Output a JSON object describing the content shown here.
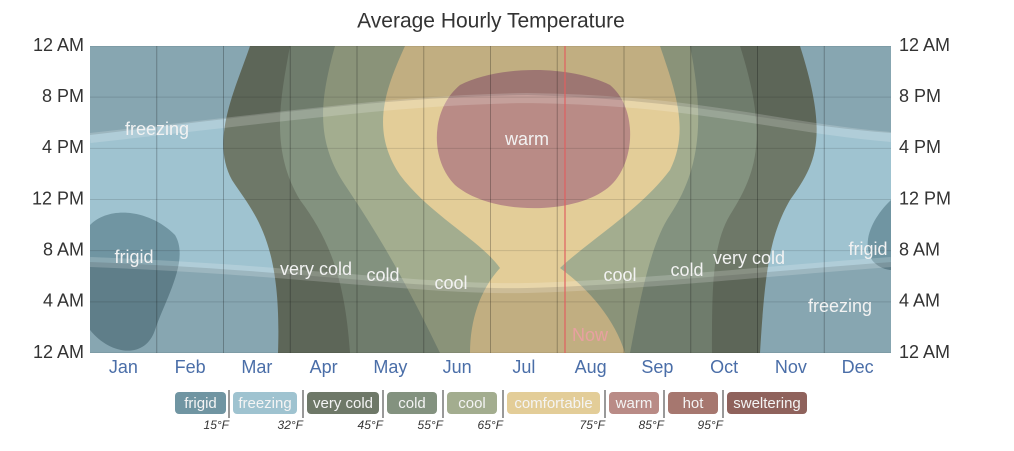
{
  "chart_data": {
    "type": "contour",
    "title": "Average Hourly Temperature",
    "categories": [
      "Jan",
      "Feb",
      "Mar",
      "Apr",
      "May",
      "Jun",
      "Jul",
      "Aug",
      "Sep",
      "Oct",
      "Nov",
      "Dec"
    ],
    "ylim": [
      0,
      24
    ],
    "yticks": [
      {
        "value": 0,
        "label": "12 AM"
      },
      {
        "value": 4,
        "label": "4 AM"
      },
      {
        "value": 8,
        "label": "8 AM"
      },
      {
        "value": 12,
        "label": "12 PM"
      },
      {
        "value": 16,
        "label": "4 PM"
      },
      {
        "value": 20,
        "label": "8 PM"
      },
      {
        "value": 24,
        "label": "12 AM"
      }
    ],
    "y2lim": [
      0,
      24
    ],
    "y2ticks": [
      {
        "value": 0,
        "label": "12 AM"
      },
      {
        "value": 4,
        "label": "4 AM"
      },
      {
        "value": 8,
        "label": "8 AM"
      },
      {
        "value": 12,
        "label": "12 PM"
      },
      {
        "value": 16,
        "label": "4 PM"
      },
      {
        "value": 20,
        "label": "8 PM"
      },
      {
        "value": 24,
        "label": "12 AM"
      }
    ],
    "grid": true,
    "region_labels": [
      "freezing",
      "warm",
      "frigid",
      "very cold",
      "cold",
      "cool",
      "cool",
      "cold",
      "very cold",
      "frigid",
      "freezing"
    ],
    "now_label": "Now",
    "legend": [
      {
        "name": "frigid",
        "color": "#7095a2"
      },
      {
        "name": "freezing",
        "color": "#9fc3d0"
      },
      {
        "name": "very cold",
        "color": "#6e7868"
      },
      {
        "name": "cold",
        "color": "#83927f"
      },
      {
        "name": "cool",
        "color": "#a3ad8f"
      },
      {
        "name": "comfortable",
        "color": "#e3cd98"
      },
      {
        "name": "warm",
        "color": "#b98b86"
      },
      {
        "name": "hot",
        "color": "#a6776f"
      },
      {
        "name": "sweltering",
        "color": "#8f625c"
      }
    ],
    "thresholds": [
      {
        "value": 15,
        "label": "15°F"
      },
      {
        "value": 32,
        "label": "32°F"
      },
      {
        "value": 45,
        "label": "45°F"
      },
      {
        "value": 55,
        "label": "55°F"
      },
      {
        "value": 65,
        "label": "65°F"
      },
      {
        "value": 75,
        "label": "75°F"
      },
      {
        "value": 85,
        "label": "85°F"
      },
      {
        "value": 95,
        "label": "95°F"
      }
    ]
  }
}
